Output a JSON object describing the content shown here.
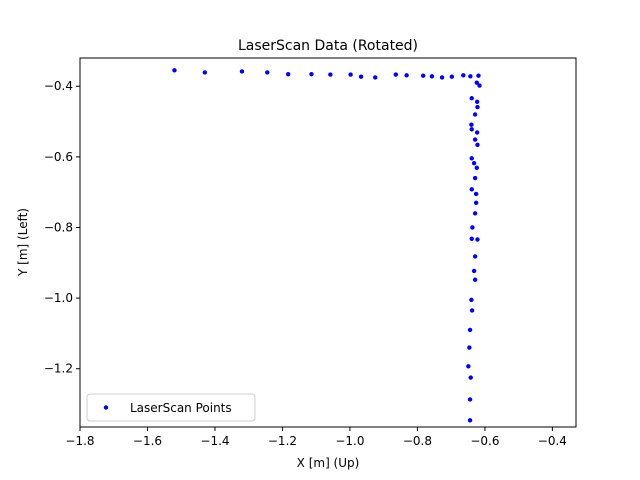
{
  "chart_data": {
    "type": "scatter",
    "title": "LaserScan Data (Rotated)",
    "xlabel": "X [m] (Up)",
    "ylabel": "Y [m] (Left)",
    "xlim": [
      -1.8,
      -0.33
    ],
    "ylim": [
      -1.365,
      -0.32
    ],
    "y_inverted": true,
    "xticks": [
      -1.8,
      -1.6,
      -1.4,
      -1.2,
      -1.0,
      -0.8,
      -0.6,
      -0.4
    ],
    "xtick_labels": [
      "−1.8",
      "−1.6",
      "−1.4",
      "−1.2",
      "−1.0",
      "−0.8",
      "−0.6",
      "−0.4"
    ],
    "yticks": [
      -0.4,
      -0.6,
      -0.8,
      -1.0,
      -1.2
    ],
    "ytick_labels": [
      "−0.4",
      "−0.6",
      "−0.8",
      "−1.0",
      "−1.2"
    ],
    "grid": false,
    "legend_position": "lower-left",
    "marker_color": "#0000ff",
    "series": [
      {
        "name": "LaserScan Points",
        "points": [
          [
            -1.52,
            -0.355
          ],
          [
            -1.43,
            -0.361
          ],
          [
            -1.32,
            -0.358
          ],
          [
            -1.245,
            -0.361
          ],
          [
            -1.183,
            -0.366
          ],
          [
            -1.114,
            -0.366
          ],
          [
            -1.058,
            -0.367
          ],
          [
            -0.998,
            -0.367
          ],
          [
            -0.967,
            -0.373
          ],
          [
            -0.925,
            -0.375
          ],
          [
            -0.864,
            -0.367
          ],
          [
            -0.832,
            -0.369
          ],
          [
            -0.783,
            -0.37
          ],
          [
            -0.757,
            -0.372
          ],
          [
            -0.727,
            -0.375
          ],
          [
            -0.698,
            -0.373
          ],
          [
            -0.664,
            -0.369
          ],
          [
            -0.643,
            -0.372
          ],
          [
            -0.619,
            -0.37
          ],
          [
            -0.624,
            -0.39
          ],
          [
            -0.616,
            -0.398
          ],
          [
            -0.639,
            -0.434
          ],
          [
            -0.623,
            -0.444
          ],
          [
            -0.622,
            -0.459
          ],
          [
            -0.629,
            -0.48
          ],
          [
            -0.64,
            -0.509
          ],
          [
            -0.639,
            -0.522
          ],
          [
            -0.623,
            -0.531
          ],
          [
            -0.629,
            -0.551
          ],
          [
            -0.622,
            -0.566
          ],
          [
            -0.639,
            -0.604
          ],
          [
            -0.632,
            -0.618
          ],
          [
            -0.624,
            -0.631
          ],
          [
            -0.629,
            -0.66
          ],
          [
            -0.639,
            -0.692
          ],
          [
            -0.626,
            -0.705
          ],
          [
            -0.626,
            -0.73
          ],
          [
            -0.629,
            -0.76
          ],
          [
            -0.637,
            -0.8
          ],
          [
            -0.622,
            -0.834
          ],
          [
            -0.639,
            -0.832
          ],
          [
            -0.629,
            -0.882
          ],
          [
            -0.632,
            -0.923
          ],
          [
            -0.629,
            -0.948
          ],
          [
            -0.64,
            -1.005
          ],
          [
            -0.638,
            -1.035
          ],
          [
            -0.644,
            -1.09
          ],
          [
            -0.646,
            -1.14
          ],
          [
            -0.649,
            -1.193
          ],
          [
            -0.642,
            -1.225
          ],
          [
            -0.644,
            -1.287
          ],
          [
            -0.644,
            -1.346
          ]
        ]
      }
    ]
  }
}
